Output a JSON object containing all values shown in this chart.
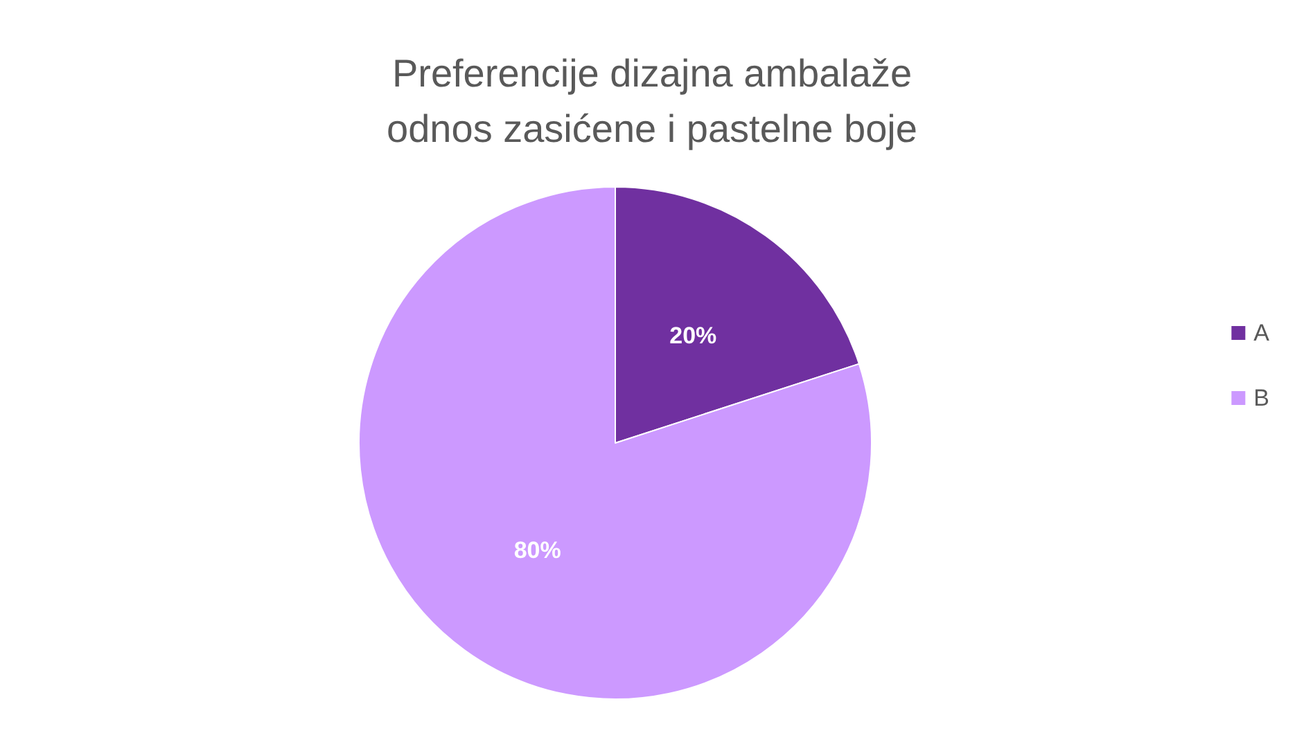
{
  "chart_data": {
    "type": "pie",
    "title": "Preferencije dizajna ambalaže\nodnos zasićene i pastelne boje",
    "categories": [
      "A",
      "B"
    ],
    "values": [
      20,
      80
    ],
    "colors": [
      "#7030a0",
      "#cc99ff"
    ],
    "value_labels": [
      "20%",
      "80%"
    ],
    "legend": "right"
  }
}
